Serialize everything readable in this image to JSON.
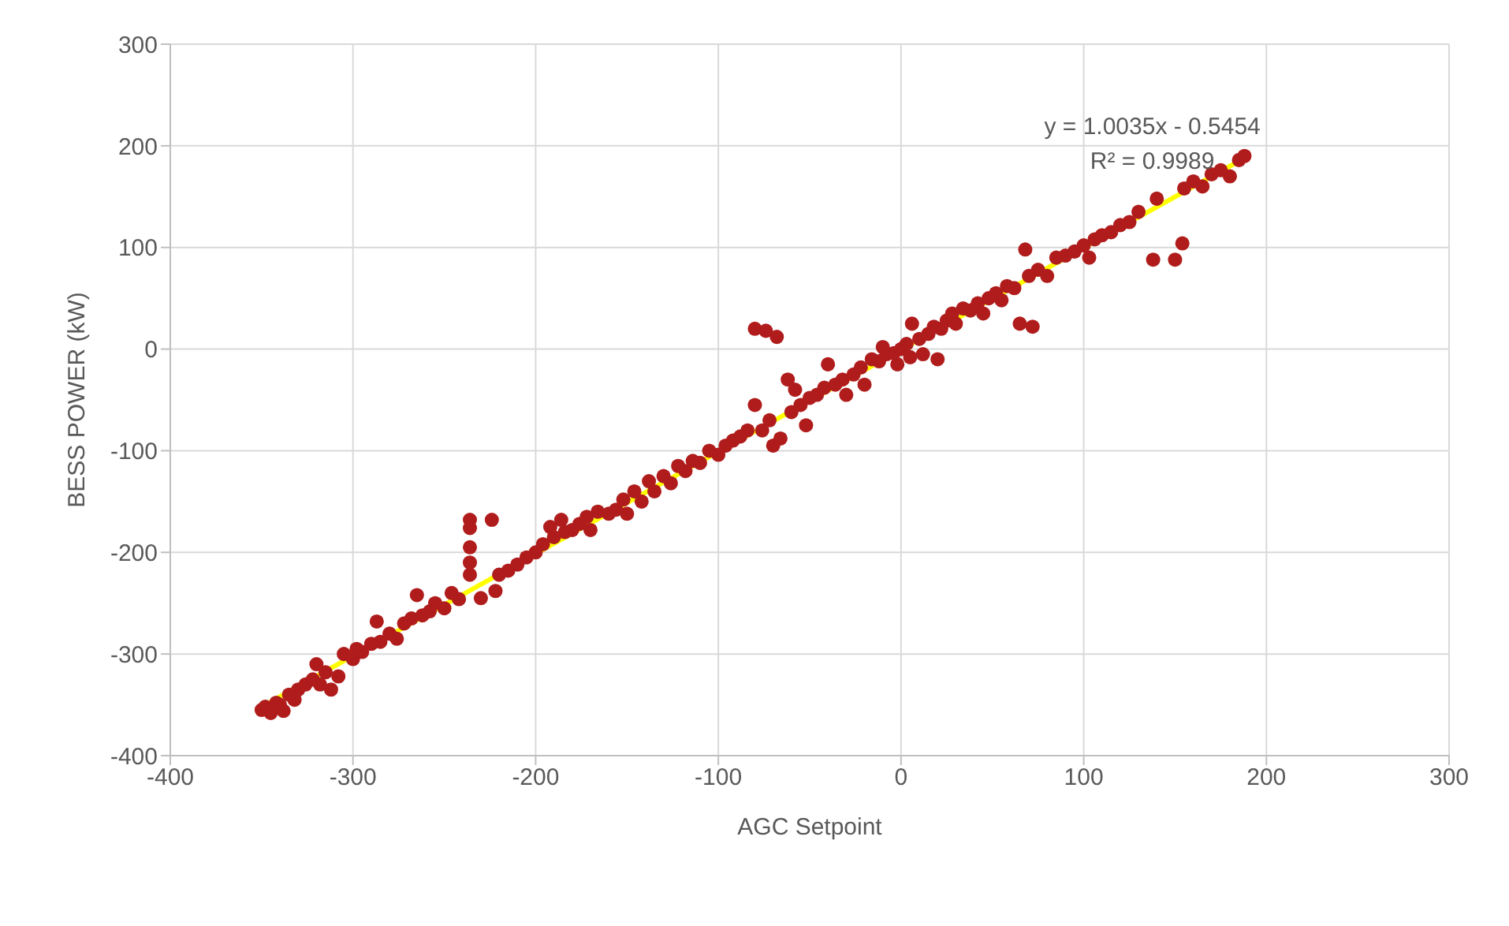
{
  "chart_data": {
    "type": "scatter",
    "xlabel": "AGC Setpoint",
    "ylabel": "BESS POWER (kW)",
    "xlim": [
      -400,
      300
    ],
    "xticks": [
      -400,
      -300,
      -200,
      -100,
      0,
      100,
      200,
      300
    ],
    "ylim": [
      -400,
      300
    ],
    "yticks": [
      -400,
      -300,
      -200,
      -100,
      0,
      100,
      200,
      300
    ],
    "grid": true,
    "legend": false,
    "annotations": [
      "y = 1.0035x - 0.5454",
      "R² = 0.9989"
    ],
    "series": [
      {
        "color": "#b01c1c",
        "marker": "circle",
        "x": [
          -350,
          -348,
          -345,
          -342,
          -340,
          -338,
          -335,
          -332,
          -330,
          -326,
          -322,
          -320,
          -318,
          -315,
          -312,
          -308,
          -305,
          -300,
          -298,
          -295,
          -290,
          -287,
          -285,
          -280,
          -276,
          -272,
          -268,
          -265,
          -262,
          -258,
          -255,
          -250,
          -246,
          -242,
          -236,
          -236,
          -236,
          -236,
          -236,
          -230,
          -224,
          -222,
          -220,
          -215,
          -210,
          -205,
          -200,
          -196,
          -192,
          -190,
          -186,
          -184,
          -180,
          -176,
          -172,
          -170,
          -166,
          -160,
          -156,
          -152,
          -150,
          -146,
          -142,
          -138,
          -135,
          -130,
          -126,
          -122,
          -118,
          -114,
          -110,
          -105,
          -100,
          -96,
          -92,
          -88,
          -84,
          -80,
          -74,
          -68,
          -80,
          -76,
          -72,
          -70,
          -66,
          -62,
          -60,
          -58,
          -55,
          -52,
          -50,
          -46,
          -42,
          -40,
          -36,
          -32,
          -30,
          -26,
          -22,
          -20,
          -16,
          -12,
          -10,
          -8,
          -4,
          -2,
          0,
          3,
          5,
          6,
          10,
          12,
          15,
          18,
          20,
          22,
          25,
          28,
          30,
          34,
          38,
          42,
          45,
          48,
          52,
          55,
          58,
          62,
          65,
          68,
          72,
          70,
          75,
          80,
          85,
          90,
          95,
          100,
          103,
          106,
          110,
          115,
          120,
          125,
          130,
          138,
          140,
          150,
          154,
          155,
          160,
          165,
          170,
          175,
          180,
          185,
          188
        ],
        "values": [
          -355,
          -352,
          -358,
          -348,
          -350,
          -356,
          -340,
          -345,
          -335,
          -330,
          -325,
          -310,
          -330,
          -318,
          -335,
          -322,
          -300,
          -305,
          -295,
          -298,
          -290,
          -268,
          -288,
          -280,
          -285,
          -270,
          -265,
          -242,
          -262,
          -258,
          -250,
          -255,
          -240,
          -246,
          -168,
          -176,
          -195,
          -210,
          -222,
          -245,
          -168,
          -238,
          -222,
          -218,
          -212,
          -205,
          -200,
          -192,
          -175,
          -185,
          -168,
          -180,
          -178,
          -172,
          -165,
          -178,
          -160,
          -162,
          -158,
          -148,
          -162,
          -140,
          -150,
          -130,
          -140,
          -125,
          -132,
          -115,
          -120,
          -110,
          -112,
          -100,
          -104,
          -95,
          -90,
          -86,
          -80,
          20,
          18,
          12,
          -55,
          -80,
          -70,
          -95,
          -88,
          -30,
          -62,
          -40,
          -55,
          -75,
          -48,
          -45,
          -38,
          -15,
          -35,
          -30,
          -45,
          -25,
          -18,
          -35,
          -10,
          -12,
          2,
          -5,
          -4,
          -15,
          0,
          5,
          -8,
          25,
          10,
          -5,
          15,
          22,
          -10,
          20,
          28,
          35,
          25,
          40,
          38,
          45,
          35,
          50,
          55,
          48,
          62,
          60,
          25,
          98,
          22,
          72,
          78,
          72,
          90,
          92,
          96,
          102,
          90,
          108,
          112,
          115,
          122,
          125,
          135,
          88,
          148,
          88,
          104,
          158,
          165,
          160,
          172,
          176,
          170,
          186,
          190
        ]
      },
      {
        "type": "line",
        "color": "#ffff00",
        "marker": "none",
        "x": [
          -350,
          188
        ],
        "values": [
          -352,
          188
        ]
      }
    ]
  }
}
